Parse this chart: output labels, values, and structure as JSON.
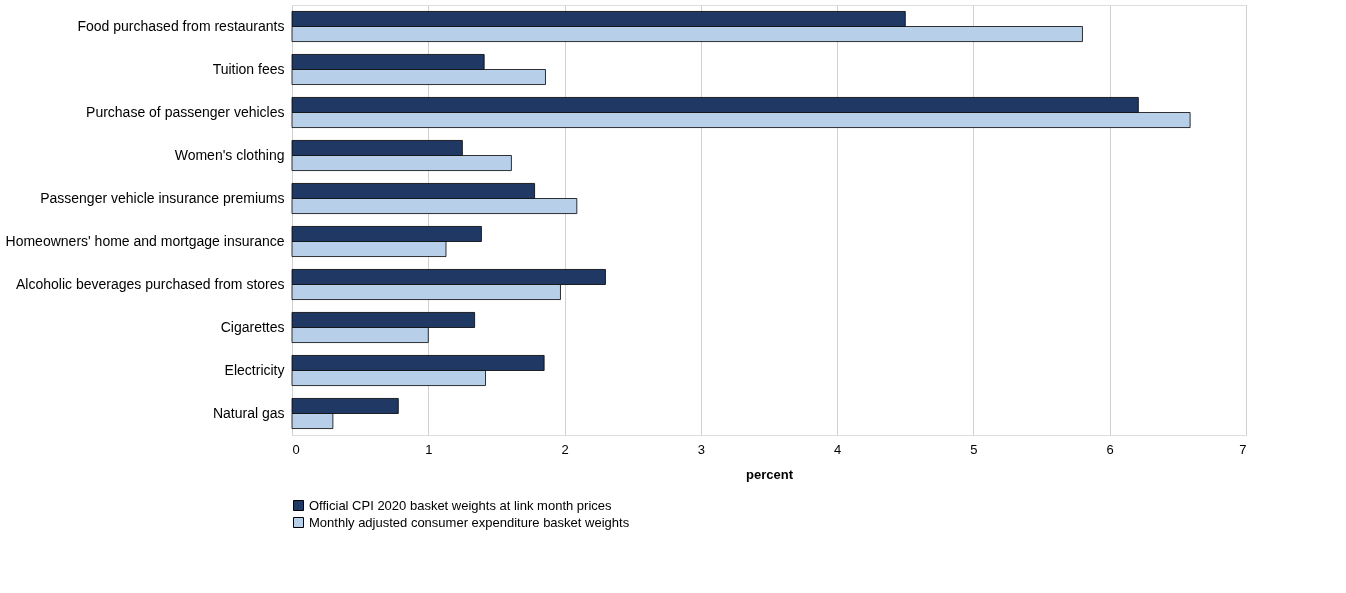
{
  "chart_data": {
    "type": "bar",
    "orientation": "horizontal",
    "xlabel": "percent",
    "categories": [
      "Food purchased from restaurants",
      "Tuition fees",
      "Purchase of passenger vehicles",
      "Women's clothing",
      "Passenger vehicle insurance premiums",
      "Homeowners' home and mortgage insurance",
      "Alcoholic beverages purchased from stores",
      "Cigarettes",
      "Electricity",
      "Natural gas"
    ],
    "series": [
      {
        "name": "Official CPI 2020 basket weights at link month prices",
        "color": "#1f3864",
        "values": [
          4.5,
          1.41,
          6.21,
          1.25,
          1.78,
          1.39,
          2.3,
          1.34,
          1.85,
          0.78
        ]
      },
      {
        "name": "Monthly adjusted consumer expenditure basket weights",
        "color": "#b8cfe9",
        "values": [
          5.8,
          1.86,
          6.59,
          1.61,
          2.09,
          1.13,
          1.97,
          1.0,
          1.42,
          0.3
        ]
      }
    ],
    "xlim": [
      0,
      7
    ],
    "xticks": [
      0,
      1,
      2,
      3,
      4,
      5,
      6,
      7
    ],
    "grid": "x",
    "legend": "bottom"
  }
}
